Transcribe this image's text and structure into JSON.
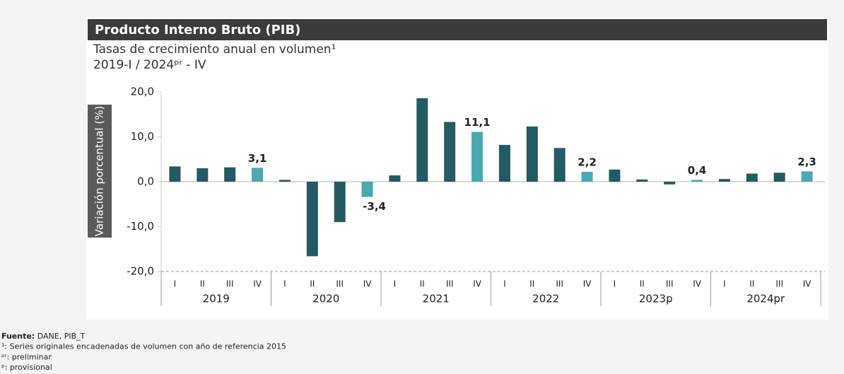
{
  "chart_data": {
    "type": "bar",
    "title": "Producto Interno Bruto (PIB)",
    "subtitle": [
      "Tasas de crecimiento anual en volumen¹",
      "2019-I / 2024ᵖʳ - IV"
    ],
    "y_label": "Variación porcentual (%)",
    "categories": [
      "I",
      "II",
      "III",
      "IV",
      "I",
      "II",
      "III",
      "IV",
      "I",
      "II",
      "III",
      "IV",
      "I",
      "II",
      "III",
      "IV",
      "I",
      "II",
      "III",
      "IV",
      "I",
      "II",
      "III",
      "IV"
    ],
    "groups": [
      "2019",
      "2020",
      "2021",
      "2022",
      "2023p",
      "2024pr"
    ],
    "values": [
      3.4,
      3.0,
      3.2,
      3.1,
      0.4,
      -16.6,
      -9.0,
      -3.4,
      1.4,
      18.6,
      13.3,
      11.1,
      8.2,
      12.3,
      7.5,
      2.2,
      2.7,
      0.5,
      -0.6,
      0.4,
      0.6,
      1.8,
      2.0,
      2.3
    ],
    "value_labels": [
      null,
      null,
      null,
      "3,1",
      null,
      null,
      null,
      "-3,4",
      null,
      null,
      null,
      "11,1",
      null,
      null,
      null,
      "2,2",
      null,
      null,
      null,
      "0,4",
      null,
      null,
      null,
      "2,3"
    ],
    "colors": [
      "#245a63",
      "#245a63",
      "#245a63",
      "#4aa9b0",
      "#245a63",
      "#245a63",
      "#245a63",
      "#4aa9b0",
      "#245a63",
      "#245a63",
      "#245a63",
      "#4aa9b0",
      "#245a63",
      "#245a63",
      "#245a63",
      "#4aa9b0",
      "#245a63",
      "#245a63",
      "#245a63",
      "#4aa9b0",
      "#245a63",
      "#245a63",
      "#245a63",
      "#4aa9b0"
    ],
    "ylim": [
      -20,
      20
    ],
    "yticks": [
      {
        "value": -20,
        "label": "-20,0"
      },
      {
        "value": -10,
        "label": "-10,0"
      },
      {
        "value": 0,
        "label": "0,0"
      },
      {
        "value": 10,
        "label": "10,0"
      },
      {
        "value": 20,
        "label": "20,0"
      }
    ],
    "footnotes": [
      {
        "mark": "Fuente:",
        "text": " DANE, PIB_T"
      },
      {
        "mark": "¹",
        "text": ": Series originales encadenadas de volumen con año de referencia 2015"
      },
      {
        "mark": "ᵖʳ",
        "text": ": preliminar"
      },
      {
        "mark": "ᵖ",
        "text": ": provisional"
      }
    ]
  }
}
